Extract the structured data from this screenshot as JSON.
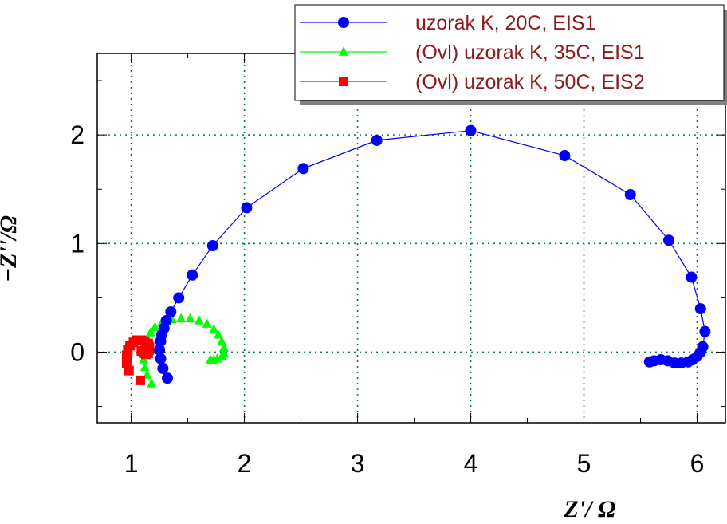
{
  "chart_data": {
    "type": "scatter",
    "xlabel": "Z'/ Ω",
    "ylabel": "−Z''/Ω",
    "xlim": [
      0.7,
      6.25
    ],
    "ylim": [
      -0.65,
      2.75
    ],
    "x_ticks": [
      "1",
      "2",
      "3",
      "4",
      "5",
      "6"
    ],
    "y_ticks": [
      "0",
      "1",
      "2"
    ],
    "grid": "dotted",
    "legend_placement": "top-right",
    "series": [
      {
        "name": "uzorak K, 20C, EIS1",
        "color": "#0000ff",
        "marker": "circle",
        "line": true,
        "points": [
          [
            1.32,
            -0.24
          ],
          [
            1.28,
            -0.15
          ],
          [
            1.26,
            -0.06
          ],
          [
            1.25,
            0.02
          ],
          [
            1.26,
            0.1
          ],
          [
            1.27,
            0.16
          ],
          [
            1.29,
            0.22
          ],
          [
            1.31,
            0.29
          ],
          [
            1.35,
            0.37
          ],
          [
            1.42,
            0.5
          ],
          [
            1.54,
            0.71
          ],
          [
            1.72,
            0.98
          ],
          [
            2.02,
            1.33
          ],
          [
            2.52,
            1.69
          ],
          [
            3.17,
            1.95
          ],
          [
            4.0,
            2.04
          ],
          [
            4.83,
            1.81
          ],
          [
            5.41,
            1.45
          ],
          [
            5.75,
            1.03
          ],
          [
            5.95,
            0.69
          ],
          [
            6.03,
            0.4
          ],
          [
            6.07,
            0.19
          ],
          [
            6.05,
            0.05
          ],
          [
            6.03,
            0.0
          ],
          [
            6.0,
            -0.04
          ],
          [
            5.96,
            -0.07
          ],
          [
            5.92,
            -0.09
          ],
          [
            5.86,
            -0.1
          ],
          [
            5.8,
            -0.1
          ],
          [
            5.74,
            -0.08
          ],
          [
            5.68,
            -0.07
          ],
          [
            5.62,
            -0.08
          ],
          [
            5.58,
            -0.09
          ]
        ]
      },
      {
        "name": "(Ovl) uzorak K, 35C, EIS1",
        "color": "#00ff00",
        "marker": "triangle",
        "line": false,
        "points": [
          [
            1.18,
            -0.29
          ],
          [
            1.14,
            -0.21
          ],
          [
            1.12,
            -0.14
          ],
          [
            1.11,
            -0.07
          ],
          [
            1.11,
            0.0
          ],
          [
            1.12,
            0.06
          ],
          [
            1.14,
            0.12
          ],
          [
            1.17,
            0.18
          ],
          [
            1.21,
            0.23
          ],
          [
            1.27,
            0.27
          ],
          [
            1.36,
            0.3
          ],
          [
            1.44,
            0.31
          ],
          [
            1.52,
            0.31
          ],
          [
            1.6,
            0.29
          ],
          [
            1.67,
            0.26
          ],
          [
            1.73,
            0.21
          ],
          [
            1.77,
            0.16
          ],
          [
            1.8,
            0.1
          ],
          [
            1.82,
            0.04
          ],
          [
            1.82,
            -0.01
          ],
          [
            1.8,
            -0.04
          ],
          [
            1.76,
            -0.06
          ],
          [
            1.73,
            -0.07
          ],
          [
            1.7,
            -0.07
          ]
        ]
      },
      {
        "name": "(Ovl) uzorak K, 50C, EIS2",
        "color": "#ff0000",
        "marker": "square",
        "line": false,
        "points": [
          [
            1.08,
            -0.26
          ],
          [
            0.98,
            -0.17
          ],
          [
            0.96,
            -0.1
          ],
          [
            0.96,
            -0.03
          ],
          [
            0.97,
            0.02
          ],
          [
            0.99,
            0.06
          ],
          [
            1.02,
            0.09
          ],
          [
            1.05,
            0.11
          ],
          [
            1.09,
            0.11
          ],
          [
            1.12,
            0.1
          ],
          [
            1.15,
            0.08
          ],
          [
            1.16,
            0.05
          ],
          [
            1.16,
            0.02
          ],
          [
            1.15,
            -0.01
          ],
          [
            1.13,
            -0.02
          ],
          [
            1.11,
            -0.01
          ],
          [
            1.09,
            0.01
          ]
        ]
      }
    ]
  }
}
